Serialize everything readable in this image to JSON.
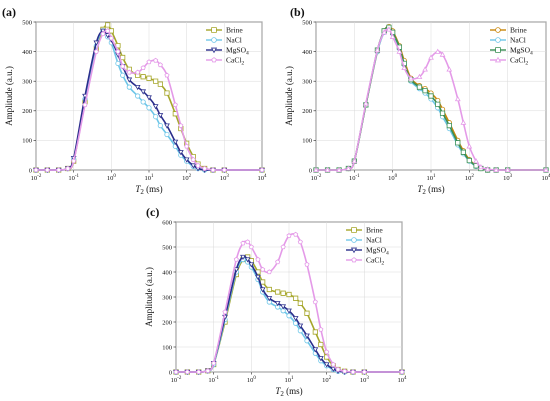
{
  "chart_data": [
    {
      "panel": "(a)",
      "type": "line",
      "xlabel": "T2 (ms)",
      "ylabel": "Amplitude (a.u.)",
      "xscale": "log",
      "xlim": [
        0.01,
        10000
      ],
      "ylim": [
        0,
        500
      ],
      "xticks": [
        "10^-2",
        "10^-1",
        "10^0",
        "10^1",
        "10^2",
        "10^3",
        "10^4"
      ],
      "yticks": [
        0,
        100,
        200,
        300,
        400,
        500
      ],
      "grid": true,
      "legend_position": "top-right",
      "series": [
        {
          "name": "Brine",
          "color": "#a6a62a",
          "marker": "square",
          "x": [
            0.01,
            0.02,
            0.04,
            0.07,
            0.1,
            0.2,
            0.4,
            0.6,
            0.8,
            1,
            1.5,
            2,
            3,
            5,
            7,
            10,
            15,
            20,
            30,
            50,
            70,
            100,
            150,
            200,
            300,
            500,
            1000,
            10000
          ],
          "y": [
            0,
            0,
            0,
            5,
            30,
            230,
            410,
            475,
            490,
            470,
            420,
            380,
            340,
            320,
            315,
            310,
            300,
            290,
            260,
            190,
            140,
            90,
            45,
            20,
            5,
            0,
            0,
            0
          ]
        },
        {
          "name": "NaCl",
          "color": "#6ec6e8",
          "marker": "circle",
          "x": [
            0.01,
            0.02,
            0.04,
            0.07,
            0.1,
            0.2,
            0.4,
            0.6,
            0.8,
            1,
            1.5,
            2,
            3,
            5,
            7,
            10,
            15,
            20,
            30,
            50,
            70,
            100,
            150,
            200,
            300,
            500,
            1000,
            10000
          ],
          "y": [
            0,
            0,
            0,
            5,
            35,
            240,
            420,
            470,
            450,
            430,
            360,
            320,
            280,
            250,
            230,
            210,
            180,
            150,
            120,
            80,
            50,
            30,
            12,
            5,
            0,
            0,
            0,
            0
          ]
        },
        {
          "name": "MgSO4",
          "color": "#2a2e8c",
          "marker": "triangle-down",
          "x": [
            0.01,
            0.02,
            0.04,
            0.07,
            0.1,
            0.2,
            0.4,
            0.6,
            0.8,
            1,
            1.5,
            2,
            3,
            5,
            7,
            10,
            15,
            20,
            30,
            50,
            70,
            100,
            150,
            200,
            300,
            500,
            1000,
            10000
          ],
          "y": [
            0,
            0,
            0,
            5,
            40,
            250,
            430,
            470,
            455,
            440,
            390,
            350,
            305,
            280,
            265,
            245,
            215,
            185,
            150,
            95,
            60,
            35,
            15,
            5,
            0,
            0,
            0,
            0
          ]
        },
        {
          "name": "CaCl2",
          "color": "#e49ae8",
          "marker": "pentagon",
          "x": [
            0.01,
            0.02,
            0.04,
            0.07,
            0.1,
            0.2,
            0.4,
            0.6,
            0.8,
            1,
            1.5,
            2,
            3,
            5,
            7,
            10,
            15,
            20,
            30,
            50,
            70,
            100,
            150,
            200,
            300,
            500,
            1000,
            10000
          ],
          "y": [
            0,
            0,
            0,
            5,
            30,
            220,
            400,
            460,
            470,
            445,
            400,
            350,
            330,
            330,
            345,
            365,
            370,
            355,
            320,
            220,
            150,
            80,
            35,
            15,
            5,
            0,
            0,
            0
          ]
        }
      ]
    },
    {
      "panel": "(b)",
      "type": "line",
      "xlabel": "T2 (ms)",
      "ylabel": "Amplitude (a.u.)",
      "xscale": "log",
      "xlim": [
        0.01,
        10000
      ],
      "ylim": [
        0,
        500
      ],
      "xticks": [
        "10^-2",
        "10^-1",
        "10^0",
        "10^1",
        "10^2",
        "10^3",
        "10^4"
      ],
      "yticks": [
        0,
        100,
        200,
        300,
        400,
        500
      ],
      "grid": true,
      "legend_position": "top-right",
      "series": [
        {
          "name": "Brine",
          "color": "#c8860a",
          "marker": "circle",
          "x": [
            0.01,
            0.02,
            0.04,
            0.07,
            0.1,
            0.2,
            0.4,
            0.6,
            0.8,
            1,
            1.5,
            2,
            3,
            5,
            7,
            10,
            15,
            20,
            30,
            50,
            70,
            100,
            150,
            200,
            300,
            500,
            1000,
            10000
          ],
          "y": [
            0,
            0,
            0,
            5,
            30,
            220,
            400,
            470,
            485,
            470,
            420,
            370,
            310,
            285,
            275,
            260,
            235,
            205,
            160,
            100,
            65,
            35,
            15,
            5,
            0,
            0,
            0,
            0
          ]
        },
        {
          "name": "NaCl",
          "color": "#6ec6e8",
          "marker": "circle",
          "x": [
            0.01,
            0.02,
            0.04,
            0.07,
            0.1,
            0.2,
            0.4,
            0.6,
            0.8,
            1,
            1.5,
            2,
            3,
            5,
            7,
            10,
            15,
            20,
            30,
            50,
            70,
            100,
            150,
            200,
            300,
            500,
            1000,
            10000
          ],
          "y": [
            0,
            0,
            0,
            5,
            30,
            220,
            400,
            465,
            480,
            460,
            410,
            355,
            300,
            275,
            260,
            240,
            210,
            180,
            140,
            85,
            55,
            30,
            12,
            5,
            0,
            0,
            0,
            0
          ]
        },
        {
          "name": "MgSO4",
          "color": "#3a8f55",
          "marker": "square",
          "x": [
            0.01,
            0.02,
            0.04,
            0.07,
            0.1,
            0.2,
            0.4,
            0.6,
            0.8,
            1,
            1.5,
            2,
            3,
            5,
            7,
            10,
            15,
            20,
            30,
            50,
            70,
            100,
            150,
            200,
            300,
            500,
            1000,
            10000
          ],
          "y": [
            0,
            0,
            0,
            5,
            30,
            220,
            405,
            470,
            482,
            465,
            415,
            360,
            305,
            280,
            268,
            250,
            222,
            192,
            150,
            92,
            60,
            32,
            14,
            5,
            0,
            0,
            0,
            0
          ]
        },
        {
          "name": "CaCl2",
          "color": "#e49ae8",
          "marker": "triangle",
          "x": [
            0.01,
            0.02,
            0.04,
            0.07,
            0.1,
            0.2,
            0.4,
            0.6,
            0.8,
            1,
            1.5,
            2,
            3,
            5,
            7,
            10,
            15,
            20,
            30,
            50,
            70,
            100,
            150,
            200,
            300,
            500,
            1000,
            10000
          ],
          "y": [
            0,
            0,
            0,
            5,
            30,
            225,
            405,
            465,
            475,
            450,
            400,
            345,
            310,
            315,
            340,
            380,
            400,
            390,
            340,
            240,
            160,
            80,
            30,
            10,
            3,
            0,
            0,
            0
          ]
        }
      ]
    },
    {
      "panel": "(c)",
      "type": "line",
      "xlabel": "T2 (ms)",
      "ylabel": "Amplitude (a.u.)",
      "xscale": "log",
      "xlim": [
        0.01,
        10000
      ],
      "ylim": [
        0,
        600
      ],
      "xticks": [
        "10^-2",
        "10^-1",
        "10^0",
        "10^1",
        "10^2",
        "10^3",
        "10^4"
      ],
      "yticks": [
        0,
        100,
        200,
        300,
        400,
        500,
        600
      ],
      "grid": true,
      "legend_position": "top-right",
      "series": [
        {
          "name": "Brine",
          "color": "#a6a62a",
          "marker": "square",
          "x": [
            0.01,
            0.02,
            0.04,
            0.07,
            0.1,
            0.2,
            0.4,
            0.6,
            0.8,
            1,
            1.5,
            2,
            3,
            5,
            7,
            10,
            15,
            20,
            30,
            50,
            70,
            100,
            150,
            200,
            300,
            500,
            1000,
            10000
          ],
          "y": [
            0,
            0,
            0,
            5,
            30,
            200,
            390,
            450,
            460,
            445,
            400,
            360,
            330,
            320,
            315,
            310,
            295,
            275,
            235,
            160,
            110,
            60,
            25,
            10,
            3,
            0,
            0,
            0
          ]
        },
        {
          "name": "NaCl",
          "color": "#6ec6e8",
          "marker": "circle",
          "x": [
            0.01,
            0.02,
            0.04,
            0.07,
            0.1,
            0.2,
            0.4,
            0.6,
            0.8,
            1,
            1.5,
            2,
            3,
            5,
            7,
            10,
            15,
            20,
            30,
            50,
            70,
            100,
            150,
            200,
            300,
            500,
            1000,
            10000
          ],
          "y": [
            0,
            0,
            0,
            5,
            30,
            210,
            400,
            450,
            440,
            420,
            370,
            320,
            280,
            260,
            245,
            225,
            195,
            165,
            125,
            75,
            45,
            25,
            10,
            3,
            0,
            0,
            0,
            0
          ]
        },
        {
          "name": "MgSO4",
          "color": "#2a2e8c",
          "marker": "triangle-down",
          "x": [
            0.01,
            0.02,
            0.04,
            0.07,
            0.1,
            0.2,
            0.4,
            0.6,
            0.8,
            1,
            1.5,
            2,
            3,
            5,
            7,
            10,
            15,
            20,
            30,
            50,
            70,
            100,
            150,
            200,
            300,
            500,
            1000,
            10000
          ],
          "y": [
            0,
            0,
            0,
            5,
            35,
            220,
            410,
            460,
            450,
            430,
            380,
            330,
            295,
            275,
            262,
            245,
            215,
            185,
            145,
            90,
            55,
            30,
            12,
            4,
            0,
            0,
            0,
            0
          ]
        },
        {
          "name": "CaCl2",
          "color": "#e49ae8",
          "marker": "pentagon",
          "x": [
            0.01,
            0.02,
            0.04,
            0.07,
            0.1,
            0.2,
            0.4,
            0.6,
            0.8,
            1,
            1.5,
            2,
            3,
            5,
            7,
            10,
            15,
            20,
            30,
            50,
            70,
            100,
            150,
            200,
            300,
            500,
            1000,
            10000
          ],
          "y": [
            0,
            0,
            0,
            5,
            35,
            240,
            450,
            515,
            520,
            500,
            450,
            410,
            400,
            440,
            500,
            545,
            550,
            520,
            430,
            280,
            170,
            80,
            30,
            10,
            3,
            0,
            0,
            0
          ]
        }
      ]
    }
  ]
}
